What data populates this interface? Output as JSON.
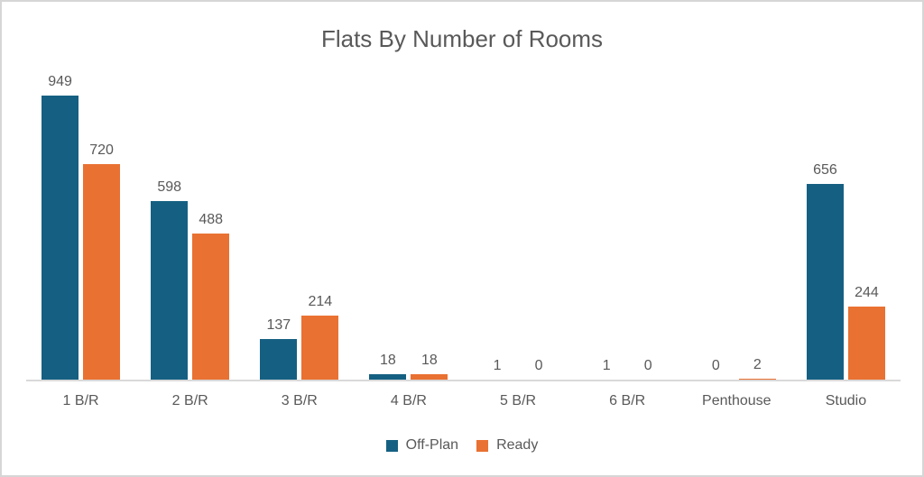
{
  "chart": {
    "title": "Flats By Number of Rooms",
    "colors": {
      "off_plan": "#156082",
      "ready": "#E97132",
      "text": "#595959",
      "axis_line": "#D9D9D9",
      "card_border": "#D6D6D6",
      "background": "#FFFFFF"
    },
    "legend": [
      {
        "label": "Off-Plan",
        "color": "#156082"
      },
      {
        "label": "Ready",
        "color": "#E97132"
      }
    ]
  },
  "chart_data": {
    "type": "bar",
    "title": "Flats By Number of Rooms",
    "categories": [
      "1 B/R",
      "2 B/R",
      "3 B/R",
      "4 B/R",
      "5 B/R",
      "6 B/R",
      "Penthouse",
      "Studio"
    ],
    "series": [
      {
        "name": "Off-Plan",
        "color": "#156082",
        "values": [
          949,
          598,
          137,
          18,
          1,
          1,
          0,
          656
        ]
      },
      {
        "name": "Ready",
        "color": "#E97132",
        "values": [
          720,
          488,
          214,
          18,
          0,
          0,
          2,
          244
        ]
      }
    ],
    "xlabel": "",
    "ylabel": "",
    "ylim": [
      0,
      1000
    ],
    "grid": false,
    "data_labels": true,
    "legend_position": "bottom"
  }
}
